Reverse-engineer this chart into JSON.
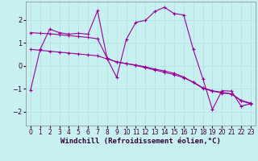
{
  "background_color": "#c8f0f0",
  "line_color": "#990099",
  "grid_color": "#b0e0e0",
  "xlabel": "Windchill (Refroidissement éolien,°C)",
  "xlabel_fontsize": 6.5,
  "tick_fontsize": 5.5,
  "xlim": [
    -0.5,
    23.5
  ],
  "ylim": [
    -2.6,
    2.8
  ],
  "yticks": [
    -2,
    -1,
    0,
    1,
    2
  ],
  "xticks": [
    0,
    1,
    2,
    3,
    4,
    5,
    6,
    7,
    8,
    9,
    10,
    11,
    12,
    13,
    14,
    15,
    16,
    17,
    18,
    19,
    20,
    21,
    22,
    23
  ],
  "series1_x": [
    0,
    1,
    2,
    3,
    4,
    5,
    6,
    7,
    8,
    9,
    10,
    11,
    12,
    13,
    14,
    15,
    16,
    17,
    18,
    19,
    20,
    21,
    22,
    23
  ],
  "series1_y": [
    -1.05,
    0.72,
    1.6,
    1.45,
    1.38,
    1.42,
    1.38,
    2.4,
    0.32,
    -0.5,
    1.15,
    1.9,
    1.98,
    2.38,
    2.55,
    2.28,
    2.22,
    0.72,
    -0.55,
    -1.9,
    -1.08,
    -1.1,
    -1.75,
    -1.65
  ],
  "series2_x": [
    0,
    1,
    2,
    3,
    4,
    5,
    6,
    7,
    8,
    9,
    10,
    11,
    12,
    13,
    14,
    15,
    16,
    17,
    18,
    19,
    20,
    21,
    22,
    23
  ],
  "series2_y": [
    0.72,
    0.68,
    0.64,
    0.6,
    0.56,
    0.52,
    0.48,
    0.44,
    0.3,
    0.18,
    0.1,
    0.02,
    -0.08,
    -0.18,
    -0.28,
    -0.38,
    -0.52,
    -0.7,
    -0.95,
    -1.08,
    -1.15,
    -1.22,
    -1.52,
    -1.65
  ],
  "series3_x": [
    0,
    1,
    2,
    3,
    4,
    5,
    6,
    7,
    8,
    9,
    10,
    11,
    12,
    13,
    14,
    15,
    16,
    17,
    18,
    19,
    20,
    21,
    22,
    23
  ],
  "series3_y": [
    1.45,
    1.42,
    1.4,
    1.36,
    1.32,
    1.28,
    1.24,
    1.18,
    0.34,
    0.16,
    0.1,
    0.04,
    -0.04,
    -0.14,
    -0.22,
    -0.32,
    -0.48,
    -0.72,
    -0.98,
    -1.1,
    -1.18,
    -1.22,
    -1.5,
    -1.62
  ]
}
